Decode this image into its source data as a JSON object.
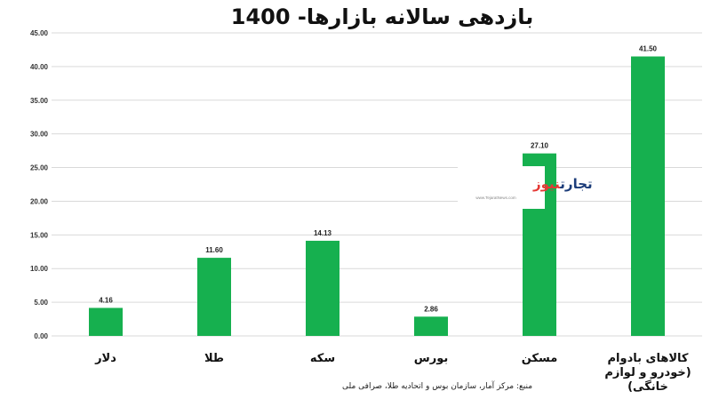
{
  "chart_data": {
    "type": "bar",
    "title": "بازدهی سالانه بازارها- 1400",
    "categories": [
      [
        "دلار"
      ],
      [
        "طلا"
      ],
      [
        "سکه"
      ],
      [
        "بورس"
      ],
      [
        "مسکن"
      ],
      [
        "کالاهای بادوام",
        "(خودرو و لوازم",
        "خانگی)"
      ]
    ],
    "values": [
      4.16,
      11.6,
      14.13,
      2.86,
      27.1,
      41.5
    ],
    "value_labels": [
      "4.16",
      "11.60",
      "14.13",
      "2.86",
      "27.10",
      "41.50"
    ],
    "ylim": [
      0,
      45
    ],
    "yticks": [
      "0.00",
      "5.00",
      "10.00",
      "15.00",
      "20.00",
      "25.00",
      "30.00",
      "35.00",
      "40.00",
      "45.00"
    ],
    "grid": true,
    "bar_color": "#16b04f",
    "grid_color": "#d9d9d9",
    "source": "منبع: مرکز آمار، سازمان بوس و اتحادیه طلا، صرافی ملی"
  },
  "watermark": {
    "text_a": "تجارت",
    "text_b": "نیوز",
    "url": "www.TejaratNews.com",
    "color_a": "#1c3d7a",
    "color_b": "#e53935"
  }
}
